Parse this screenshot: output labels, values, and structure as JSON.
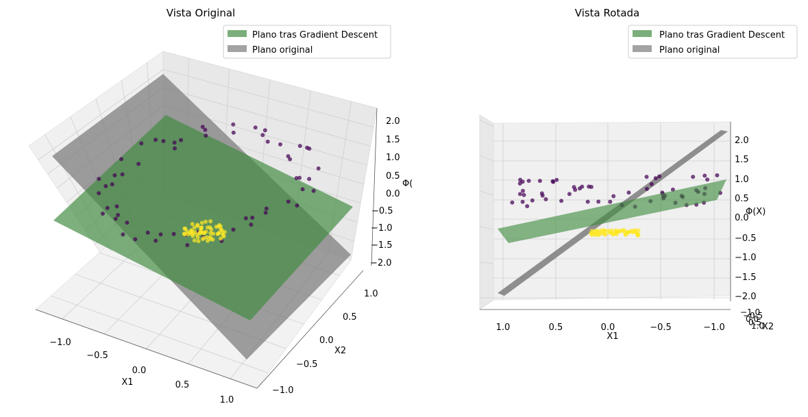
{
  "chart_data": [
    {
      "type": "scatter",
      "title": "Vista Original",
      "xlabel": "X1",
      "ylabel": "X2",
      "zlabel": "Φ(",
      "xlim": [
        -1.2,
        1.2
      ],
      "ylim": [
        -1.2,
        1.2
      ],
      "zlim": [
        -2.2,
        2.2
      ],
      "x_ticks": [
        "−1.0",
        "−0.5",
        "0.0",
        "0.5",
        "1.0"
      ],
      "y_ticks": [
        "−1.0",
        "−0.5",
        "0.0",
        "0.5",
        "1.0"
      ],
      "z_ticks": [
        "−2.0",
        "−1.5",
        "−1.0",
        "−0.5",
        "0.0",
        "0.5",
        "1.0",
        "1.5",
        "2.0"
      ],
      "legend": {
        "position": "top-right",
        "entries": [
          {
            "label": "Plano tras Gradient Descent",
            "color": "#5a9a5a"
          },
          {
            "label": "Plano original",
            "color": "#8c8c8c"
          }
        ]
      },
      "series": [
        {
          "class": 0,
          "color": "#440154",
          "approx_points": 60
        },
        {
          "class": 1,
          "color": "#fde725",
          "approx_points": 60
        }
      ]
    },
    {
      "type": "scatter",
      "title": "Vista Rotada",
      "xlabel": "X1",
      "ylabel": "X2",
      "zlabel": "Φ(X)",
      "xlim": [
        -1.2,
        1.2
      ],
      "zlim": [
        -2.2,
        2.2
      ],
      "x_ticks": [
        "1.0",
        "0.5",
        "0.0",
        "−0.5",
        "−1.0"
      ],
      "y_ticks": [
        "−1.0",
        "−0.5",
        "0.0",
        "0.5",
        "1.0"
      ],
      "z_ticks": [
        "−2.0",
        "−1.5",
        "−1.0",
        "−0.5",
        "0.0",
        "0.5",
        "1.0",
        "1.5",
        "2.0"
      ],
      "legend": {
        "position": "top-right",
        "entries": [
          {
            "label": "Plano tras Gradient Descent",
            "color": "#5a9a5a"
          },
          {
            "label": "Plano original",
            "color": "#8c8c8c"
          }
        ]
      }
    }
  ]
}
